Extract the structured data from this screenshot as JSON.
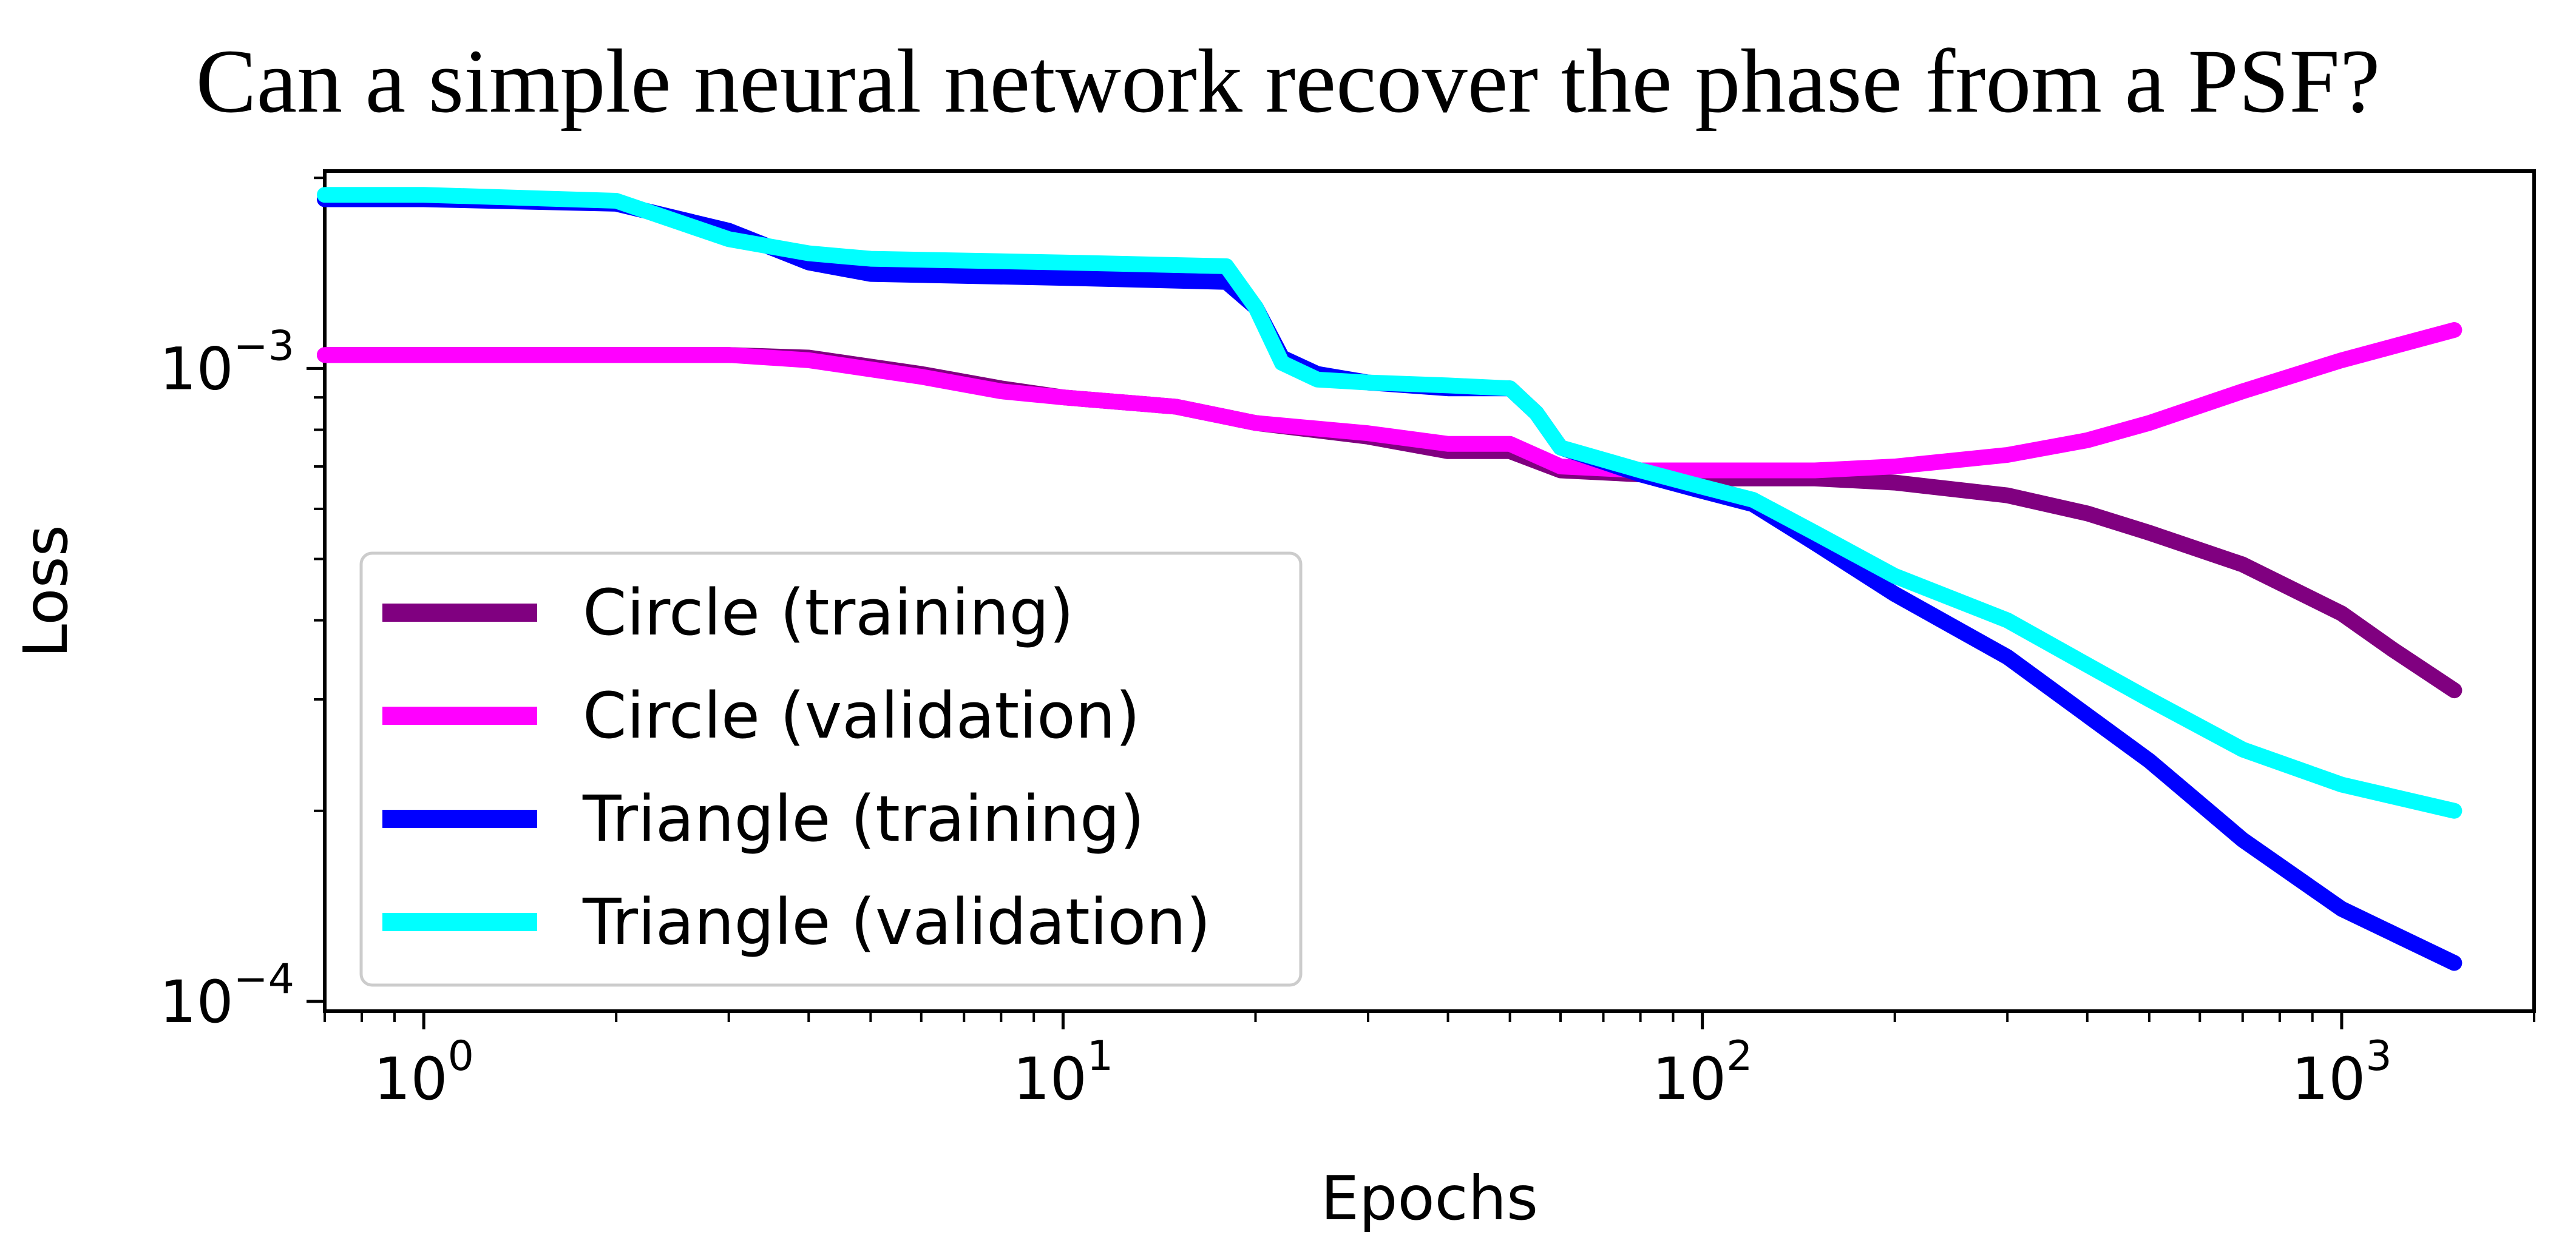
{
  "chart_data": {
    "type": "line",
    "title": "Can a simple neural network recover the phase from a PSF?",
    "xlabel": "Epochs",
    "ylabel": "Loss",
    "xscale": "log",
    "yscale": "log",
    "xlim": [
      0.7,
      2000
    ],
    "ylim": [
      9.65e-05,
      0.00205
    ],
    "x_ticks": [
      {
        "base": "10",
        "exp": "0",
        "value": 1
      },
      {
        "base": "10",
        "exp": "1",
        "value": 10
      },
      {
        "base": "10",
        "exp": "2",
        "value": 100
      },
      {
        "base": "10",
        "exp": "3",
        "value": 1000
      }
    ],
    "y_ticks": [
      {
        "base": "10",
        "exp": "−3",
        "value": 0.001
      },
      {
        "base": "10",
        "exp": "−4",
        "value": 0.0001
      }
    ],
    "grid": false,
    "legend_position": "lower-left",
    "series": [
      {
        "name": "Circle (training)",
        "color": "#800080",
        "points": [
          [
            0.7,
            0.00105
          ],
          [
            1,
            0.00105
          ],
          [
            2,
            0.00105
          ],
          [
            3,
            0.00105
          ],
          [
            4,
            0.00104
          ],
          [
            6,
            0.00098
          ],
          [
            8,
            0.00093
          ],
          [
            10,
            0.0009
          ],
          [
            15,
            0.00087
          ],
          [
            20,
            0.00082
          ],
          [
            30,
            0.00078
          ],
          [
            40,
            0.00074
          ],
          [
            50,
            0.00074
          ],
          [
            60,
            0.00069
          ],
          [
            80,
            0.00068
          ],
          [
            100,
            0.00067
          ],
          [
            150,
            0.00067
          ],
          [
            200,
            0.00066
          ],
          [
            300,
            0.00063
          ],
          [
            400,
            0.00059
          ],
          [
            500,
            0.00055
          ],
          [
            700,
            0.00049
          ],
          [
            1000,
            0.00041
          ],
          [
            1200,
            0.00036
          ],
          [
            1500,
            0.00031
          ]
        ]
      },
      {
        "name": "Circle (validation)",
        "color": "#ff00ff",
        "points": [
          [
            0.7,
            0.00105
          ],
          [
            1,
            0.00105
          ],
          [
            2,
            0.00105
          ],
          [
            3,
            0.00105
          ],
          [
            4,
            0.00103
          ],
          [
            6,
            0.00097
          ],
          [
            8,
            0.00092
          ],
          [
            10,
            0.0009
          ],
          [
            15,
            0.00087
          ],
          [
            20,
            0.00082
          ],
          [
            30,
            0.00079
          ],
          [
            40,
            0.00076
          ],
          [
            50,
            0.00076
          ],
          [
            60,
            0.0007
          ],
          [
            80,
            0.00069
          ],
          [
            100,
            0.00069
          ],
          [
            150,
            0.00069
          ],
          [
            200,
            0.0007
          ],
          [
            300,
            0.00073
          ],
          [
            400,
            0.00077
          ],
          [
            500,
            0.00082
          ],
          [
            700,
            0.00092
          ],
          [
            1000,
            0.00103
          ],
          [
            1500,
            0.00115
          ]
        ]
      },
      {
        "name": "Triangle (training)",
        "color": "#0000ff",
        "points": [
          [
            0.7,
            0.00185
          ],
          [
            1,
            0.00185
          ],
          [
            2,
            0.00182
          ],
          [
            3,
            0.00165
          ],
          [
            4,
            0.00147
          ],
          [
            5,
            0.00141
          ],
          [
            10,
            0.00139
          ],
          [
            18,
            0.00137
          ],
          [
            20,
            0.00125
          ],
          [
            22,
            0.00104
          ],
          [
            25,
            0.00098
          ],
          [
            30,
            0.00095
          ],
          [
            40,
            0.00093
          ],
          [
            50,
            0.00093
          ],
          [
            55,
            0.00085
          ],
          [
            60,
            0.00075
          ],
          [
            80,
            0.00068
          ],
          [
            100,
            0.00064
          ],
          [
            120,
            0.00061
          ],
          [
            150,
            0.00053
          ],
          [
            200,
            0.00044
          ],
          [
            300,
            0.00035
          ],
          [
            500,
            0.00024
          ],
          [
            700,
            0.00018
          ],
          [
            1000,
            0.00014
          ],
          [
            1500,
            0.000115
          ]
        ]
      },
      {
        "name": "Triangle (validation)",
        "color": "#00ffff",
        "points": [
          [
            0.7,
            0.00188
          ],
          [
            1,
            0.00188
          ],
          [
            2,
            0.00184
          ],
          [
            3,
            0.0016
          ],
          [
            4,
            0.00152
          ],
          [
            5,
            0.00149
          ],
          [
            10,
            0.00147
          ],
          [
            18,
            0.00145
          ],
          [
            20,
            0.00125
          ],
          [
            22,
            0.00102
          ],
          [
            25,
            0.00096
          ],
          [
            30,
            0.00095
          ],
          [
            40,
            0.00094
          ],
          [
            50,
            0.00093
          ],
          [
            55,
            0.00085
          ],
          [
            60,
            0.00075
          ],
          [
            80,
            0.00069
          ],
          [
            100,
            0.00065
          ],
          [
            120,
            0.00062
          ],
          [
            150,
            0.00055
          ],
          [
            200,
            0.00047
          ],
          [
            300,
            0.0004
          ],
          [
            400,
            0.00034
          ],
          [
            500,
            0.0003
          ],
          [
            700,
            0.00025
          ],
          [
            1000,
            0.00022
          ],
          [
            1500,
            0.0002
          ]
        ]
      }
    ]
  }
}
